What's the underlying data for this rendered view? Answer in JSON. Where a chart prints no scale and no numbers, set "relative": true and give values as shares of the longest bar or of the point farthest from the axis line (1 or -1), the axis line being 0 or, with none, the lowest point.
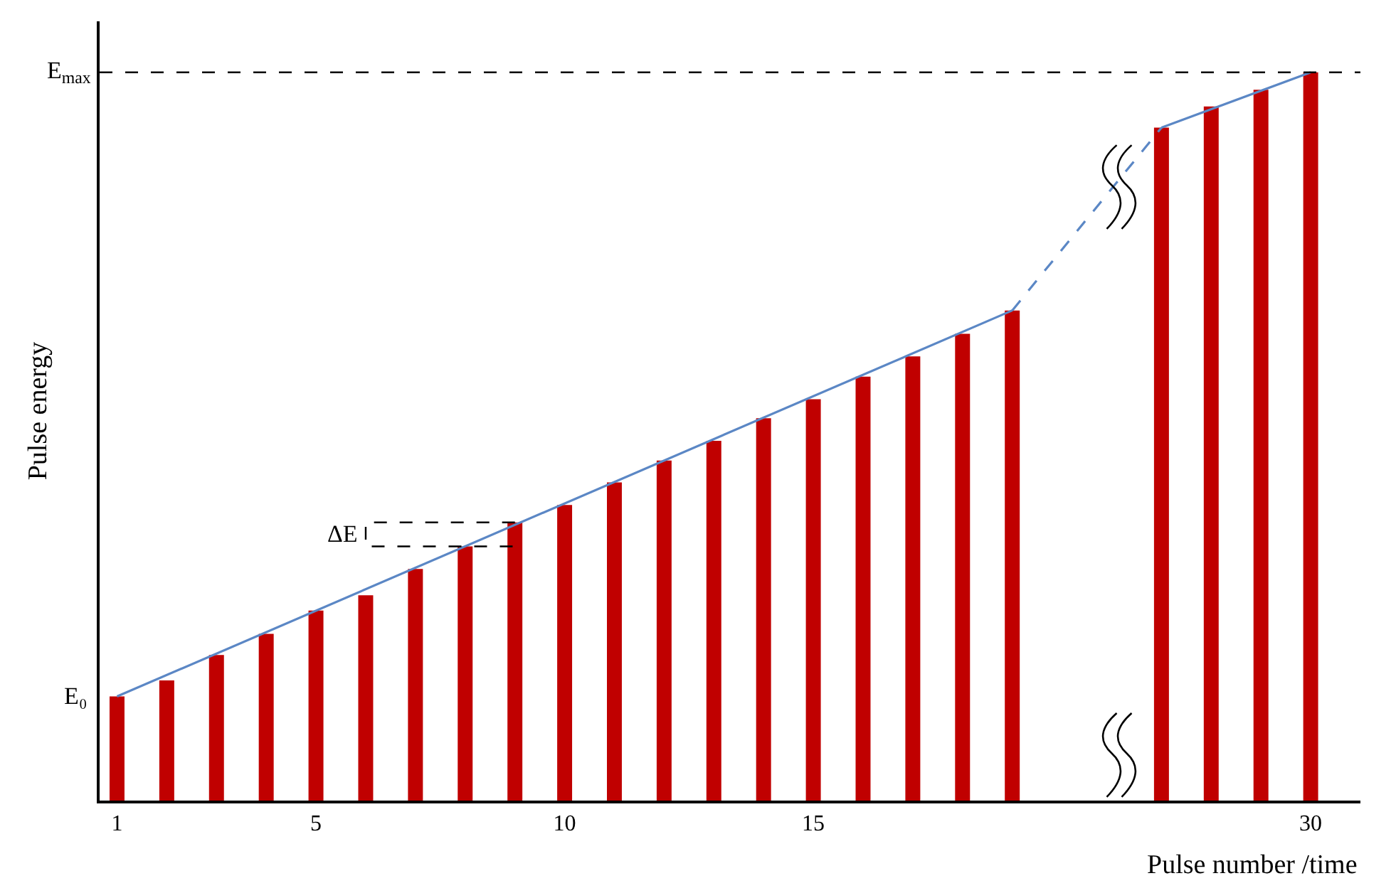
{
  "chart_data": {
    "type": "bar",
    "relative": true,
    "xlabel": "Pulse number /time",
    "ylabel": "Pulse energy",
    "categories": [
      "1",
      null,
      null,
      null,
      "5",
      null,
      null,
      null,
      null,
      "10",
      null,
      null,
      null,
      null,
      "15",
      null,
      null,
      null,
      null,
      null,
      null,
      null,
      null,
      null,
      "30"
    ],
    "series": [
      {
        "color": "#c00000",
        "values": [
          0.143,
          0.165,
          0.2,
          0.229,
          0.261,
          0.282,
          0.318,
          0.349,
          0.382,
          0.406,
          0.437,
          0.467,
          0.494,
          0.525,
          0.551,
          0.582,
          0.61,
          0.641,
          0.673,
          null,
          null,
          0.924,
          0.953,
          0.976,
          1.0
        ]
      },
      {
        "type": "line",
        "color": "#5b87c5",
        "line_style": "solid",
        "values": [
          0.143,
          null,
          null,
          null,
          null,
          null,
          null,
          null,
          null,
          null,
          null,
          null,
          null,
          null,
          null,
          null,
          null,
          null,
          0.673,
          null,
          null,
          null,
          null,
          null,
          null
        ]
      },
      {
        "type": "line",
        "color": "#5b87c5",
        "line_style": "dashed",
        "values": [
          null,
          null,
          null,
          null,
          null,
          null,
          null,
          null,
          null,
          null,
          null,
          null,
          null,
          null,
          null,
          null,
          null,
          null,
          0.673,
          null,
          null,
          0.924,
          null,
          null,
          null
        ]
      },
      {
        "type": "line",
        "color": "#5b87c5",
        "line_style": "solid",
        "values": [
          null,
          null,
          null,
          null,
          null,
          null,
          null,
          null,
          null,
          null,
          null,
          null,
          null,
          null,
          null,
          null,
          null,
          null,
          null,
          null,
          null,
          0.924,
          null,
          null,
          1.0
        ]
      }
    ],
    "ref_lines": [
      {
        "axis": "y",
        "value": 1.0,
        "label": "E$_{max}$",
        "color": "#000000",
        "line_style": "dashed"
      }
    ],
    "annotations": [
      {
        "text": "E₀",
        "x": "1",
        "y": 0.143
      },
      "ΔE"
    ]
  }
}
